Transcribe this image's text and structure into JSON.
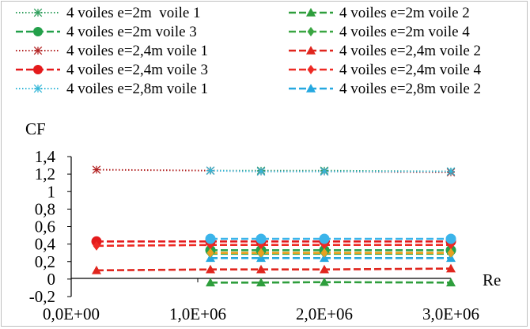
{
  "chart_data": {
    "type": "line",
    "title": "",
    "xlabel": "Re",
    "ylabel": "CF",
    "xlim": [
      0,
      3000000
    ],
    "ylim": [
      -0.2,
      1.4
    ],
    "x_ticks": [
      "0,0E+00",
      "1,0E+06",
      "2,0E+06",
      "3,0E+06"
    ],
    "y_ticks": [
      "-0,2",
      "0",
      "0,2",
      "0,4",
      "0,6",
      "0,8",
      "1",
      "1,2",
      "1,4"
    ],
    "grid": false,
    "legend_position": "top",
    "series": [
      {
        "name": "4 voiles e=2m  voile 1",
        "color": "#2e9e5b",
        "dash": "1.5,2.5",
        "marker": "star",
        "x": [
          1100000,
          1500000,
          2000000,
          3000000
        ],
        "y": [
          1.24,
          1.24,
          1.24,
          1.23
        ]
      },
      {
        "name": "4 voiles e=2m voile 2",
        "color": "#2e9e3c",
        "dash": "9,4",
        "marker": "triangle",
        "x": [
          1100000,
          1500000,
          2000000,
          3000000
        ],
        "y": [
          -0.04,
          -0.04,
          -0.035,
          -0.04
        ]
      },
      {
        "name": "4 voiles e=2m voile 3",
        "color": "#23a04a",
        "dash": "9,4",
        "marker": "circle",
        "x": [
          1100000,
          1500000,
          2000000,
          3000000
        ],
        "y": [
          0.33,
          0.33,
          0.33,
          0.33
        ]
      },
      {
        "name": "4 voiles e=2m voile 4",
        "color": "#3aa642",
        "dash": "9,4",
        "marker": "diamond",
        "x": [
          1100000,
          1500000,
          2000000,
          3000000
        ],
        "y": [
          0.29,
          0.29,
          0.29,
          0.29
        ]
      },
      {
        "name": "4 voiles e=2,4m voile 1",
        "color": "#b22222",
        "dash": "1.5,2.5",
        "marker": "star",
        "x": [
          200000,
          1100000,
          1500000,
          2000000,
          3000000
        ],
        "y": [
          1.25,
          1.24,
          1.23,
          1.23,
          1.22
        ]
      },
      {
        "name": "4 voiles e=2,4m voile 2",
        "color": "#e0261e",
        "dash": "9,4",
        "marker": "triangle",
        "x": [
          200000,
          1100000,
          1500000,
          2000000,
          3000000
        ],
        "y": [
          0.1,
          0.11,
          0.11,
          0.11,
          0.12
        ]
      },
      {
        "name": "4 voiles e=2,4m voile 3",
        "color": "#e41a1c",
        "dash": "9,4",
        "marker": "circle",
        "x": [
          200000,
          1100000,
          1500000,
          2000000,
          3000000
        ],
        "y": [
          0.43,
          0.43,
          0.43,
          0.43,
          0.43
        ]
      },
      {
        "name": "4 voiles e=2,4m voile 4",
        "color": "#ee2a24",
        "dash": "9,4",
        "marker": "diamond",
        "x": [
          200000,
          1100000,
          1500000,
          2000000,
          3000000
        ],
        "y": [
          0.38,
          0.39,
          0.39,
          0.39,
          0.39
        ]
      },
      {
        "name": "4 voiles e=2,8m voile 1",
        "color": "#35b7d8",
        "dash": "1.5,2.5",
        "marker": "star",
        "x": [
          1100000,
          1500000,
          2000000,
          3000000
        ],
        "y": [
          1.24,
          1.23,
          1.23,
          1.23
        ]
      },
      {
        "name": "4 voiles e=2,8m voile 2",
        "color": "#25a8e0",
        "dash": "9,4",
        "marker": "triangle",
        "x": [
          1100000,
          1500000,
          2000000,
          3000000
        ],
        "y": [
          0.24,
          0.24,
          0.24,
          0.24
        ]
      },
      {
        "name": "",
        "color": "#3bb4ea",
        "dash": "9,4",
        "marker": "circle",
        "x": [
          1100000,
          1500000,
          2000000,
          3000000
        ],
        "y": [
          0.46,
          0.46,
          0.46,
          0.46
        ]
      },
      {
        "name": "",
        "color": "#e8a020",
        "dash": "9,4",
        "marker": "diamond",
        "x": [
          1100000,
          1500000,
          2000000,
          3000000
        ],
        "y": [
          0.3,
          0.3,
          0.3,
          0.3
        ]
      }
    ]
  }
}
